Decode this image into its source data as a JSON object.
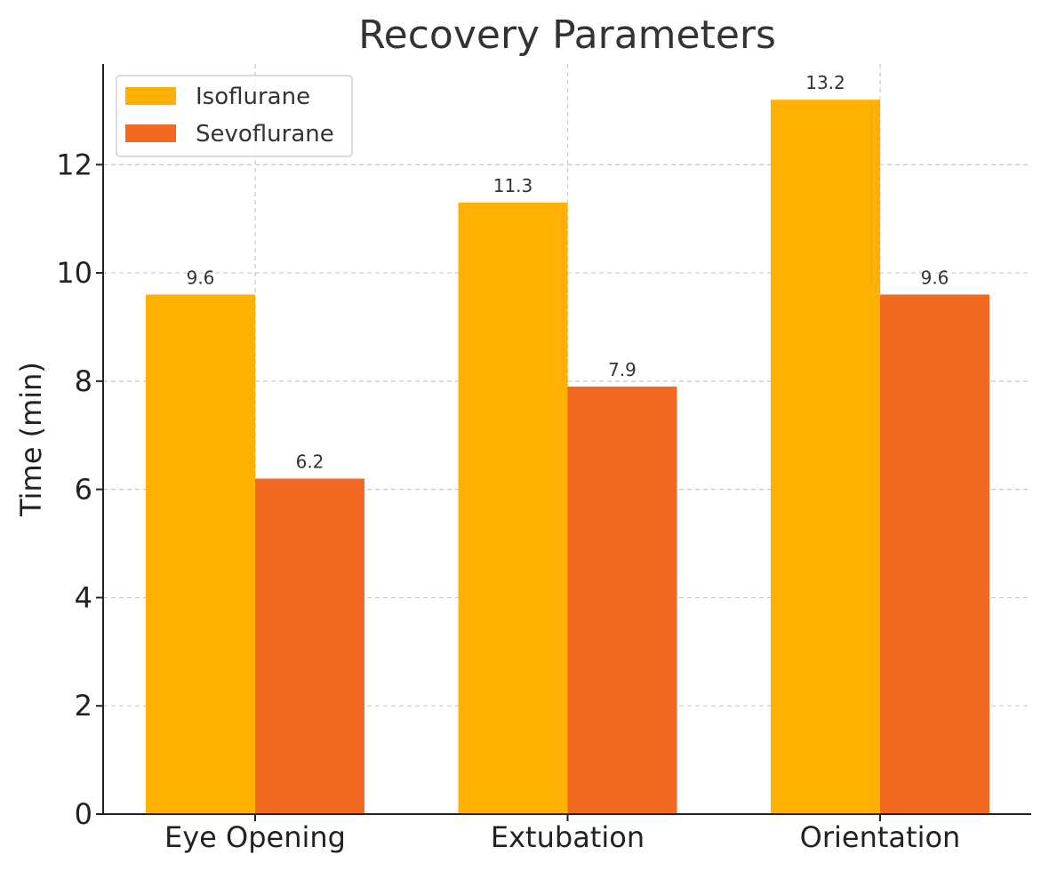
{
  "chart_data": {
    "type": "bar",
    "title": "Recovery Parameters",
    "xlabel": "",
    "ylabel": "Time (min)",
    "categories": [
      "Eye Opening",
      "Extubation",
      "Orientation"
    ],
    "series": [
      {
        "name": "Isoflurane",
        "color": "#FFB000",
        "values": [
          9.6,
          11.3,
          13.2
        ]
      },
      {
        "name": "Sevoflurane",
        "color": "#F26A21",
        "values": [
          6.2,
          7.9,
          9.6
        ]
      }
    ],
    "yticks": [
      0,
      2,
      4,
      6,
      8,
      10,
      12
    ],
    "ylim": [
      0,
      13.86
    ],
    "grid": true,
    "legend_position": "top-left"
  }
}
